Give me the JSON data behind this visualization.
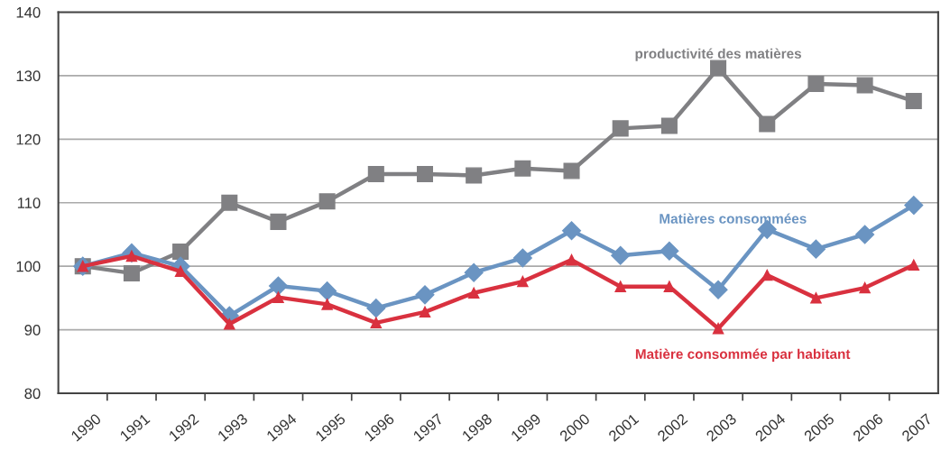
{
  "chart_data": {
    "type": "line",
    "categories": [
      "1990",
      "1991",
      "1992",
      "1993",
      "1994",
      "1995",
      "1996",
      "1997",
      "1998",
      "1999",
      "2000",
      "2001",
      "2002",
      "2003",
      "2004",
      "2005",
      "2006",
      "2007"
    ],
    "series": [
      {
        "name": "productivité des matières",
        "color": "#808083",
        "marker": "square",
        "values": [
          100,
          98.9,
          102.3,
          110,
          107,
          110.2,
          114.5,
          114.5,
          114.3,
          115.4,
          115,
          121.7,
          122.1,
          131.2,
          122.4,
          128.7,
          128.5,
          126
        ]
      },
      {
        "name": "Matières consommées",
        "color": "#6a94c2",
        "marker": "diamond",
        "values": [
          100,
          102.1,
          100,
          92.2,
          96.9,
          96.1,
          93.4,
          95.5,
          99,
          101.3,
          105.6,
          101.7,
          102.4,
          96.3,
          105.8,
          102.7,
          105,
          109.6
        ]
      },
      {
        "name": "Matière consommée par habitant",
        "color": "#d9313f",
        "marker": "triangle",
        "values": [
          100,
          101.6,
          99.2,
          90.9,
          95.1,
          94,
          91.1,
          92.8,
          95.8,
          97.6,
          101,
          96.8,
          96.8,
          90.2,
          98.6,
          95,
          96.6,
          100.2
        ]
      }
    ],
    "ylim": [
      80,
      140
    ],
    "yticks": [
      80,
      90,
      100,
      110,
      120,
      130,
      140
    ],
    "grid": "y",
    "legend": false,
    "line_style": "solid"
  }
}
